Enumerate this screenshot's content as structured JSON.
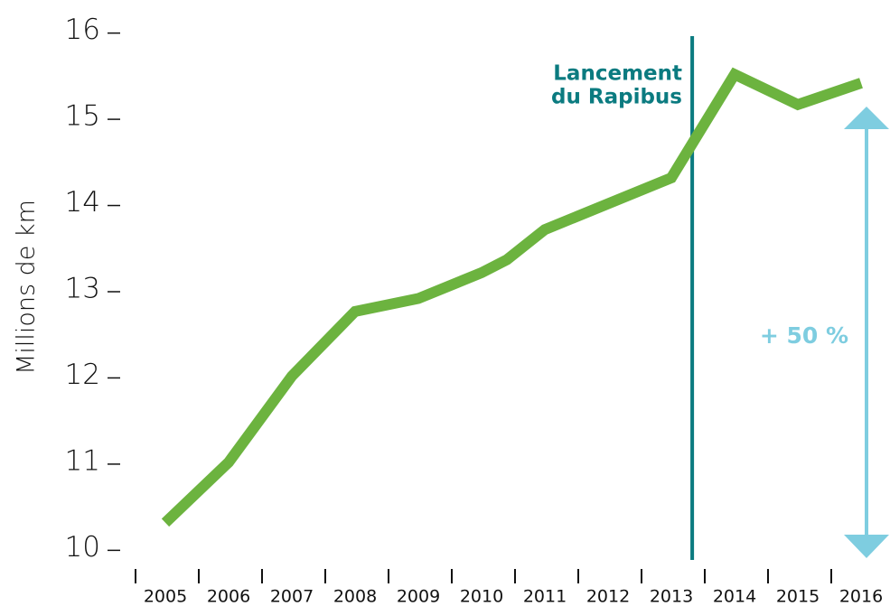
{
  "chart_data": {
    "type": "line",
    "y_label": "Millions de km",
    "x": [
      2005,
      2006,
      2007,
      2008,
      2009,
      2010,
      2010.4,
      2011,
      2012,
      2013,
      2014,
      2015,
      2016
    ],
    "series": [
      {
        "name": "Millions de km",
        "color": "#6cb33f",
        "values": [
          10.3,
          11.0,
          12.0,
          12.75,
          12.9,
          13.2,
          13.35,
          13.7,
          14.0,
          14.3,
          15.5,
          15.15,
          15.4
        ]
      }
    ],
    "xlim": [
      2004.5,
      2016.5
    ],
    "xticks": [
      2005,
      2006,
      2007,
      2008,
      2009,
      2010,
      2011,
      2012,
      2013,
      2014,
      2015,
      2016
    ],
    "ylim": [
      9.7,
      16.3
    ],
    "yticks": [
      10,
      11,
      12,
      13,
      14,
      15,
      16
    ],
    "annotations": [
      {
        "text": [
          "Lancement",
          "du Rapibus"
        ],
        "x": 2013.33,
        "color": "#0b7b80"
      },
      {
        "text": "+ 50 %",
        "color": "#7ecde0"
      }
    ]
  }
}
